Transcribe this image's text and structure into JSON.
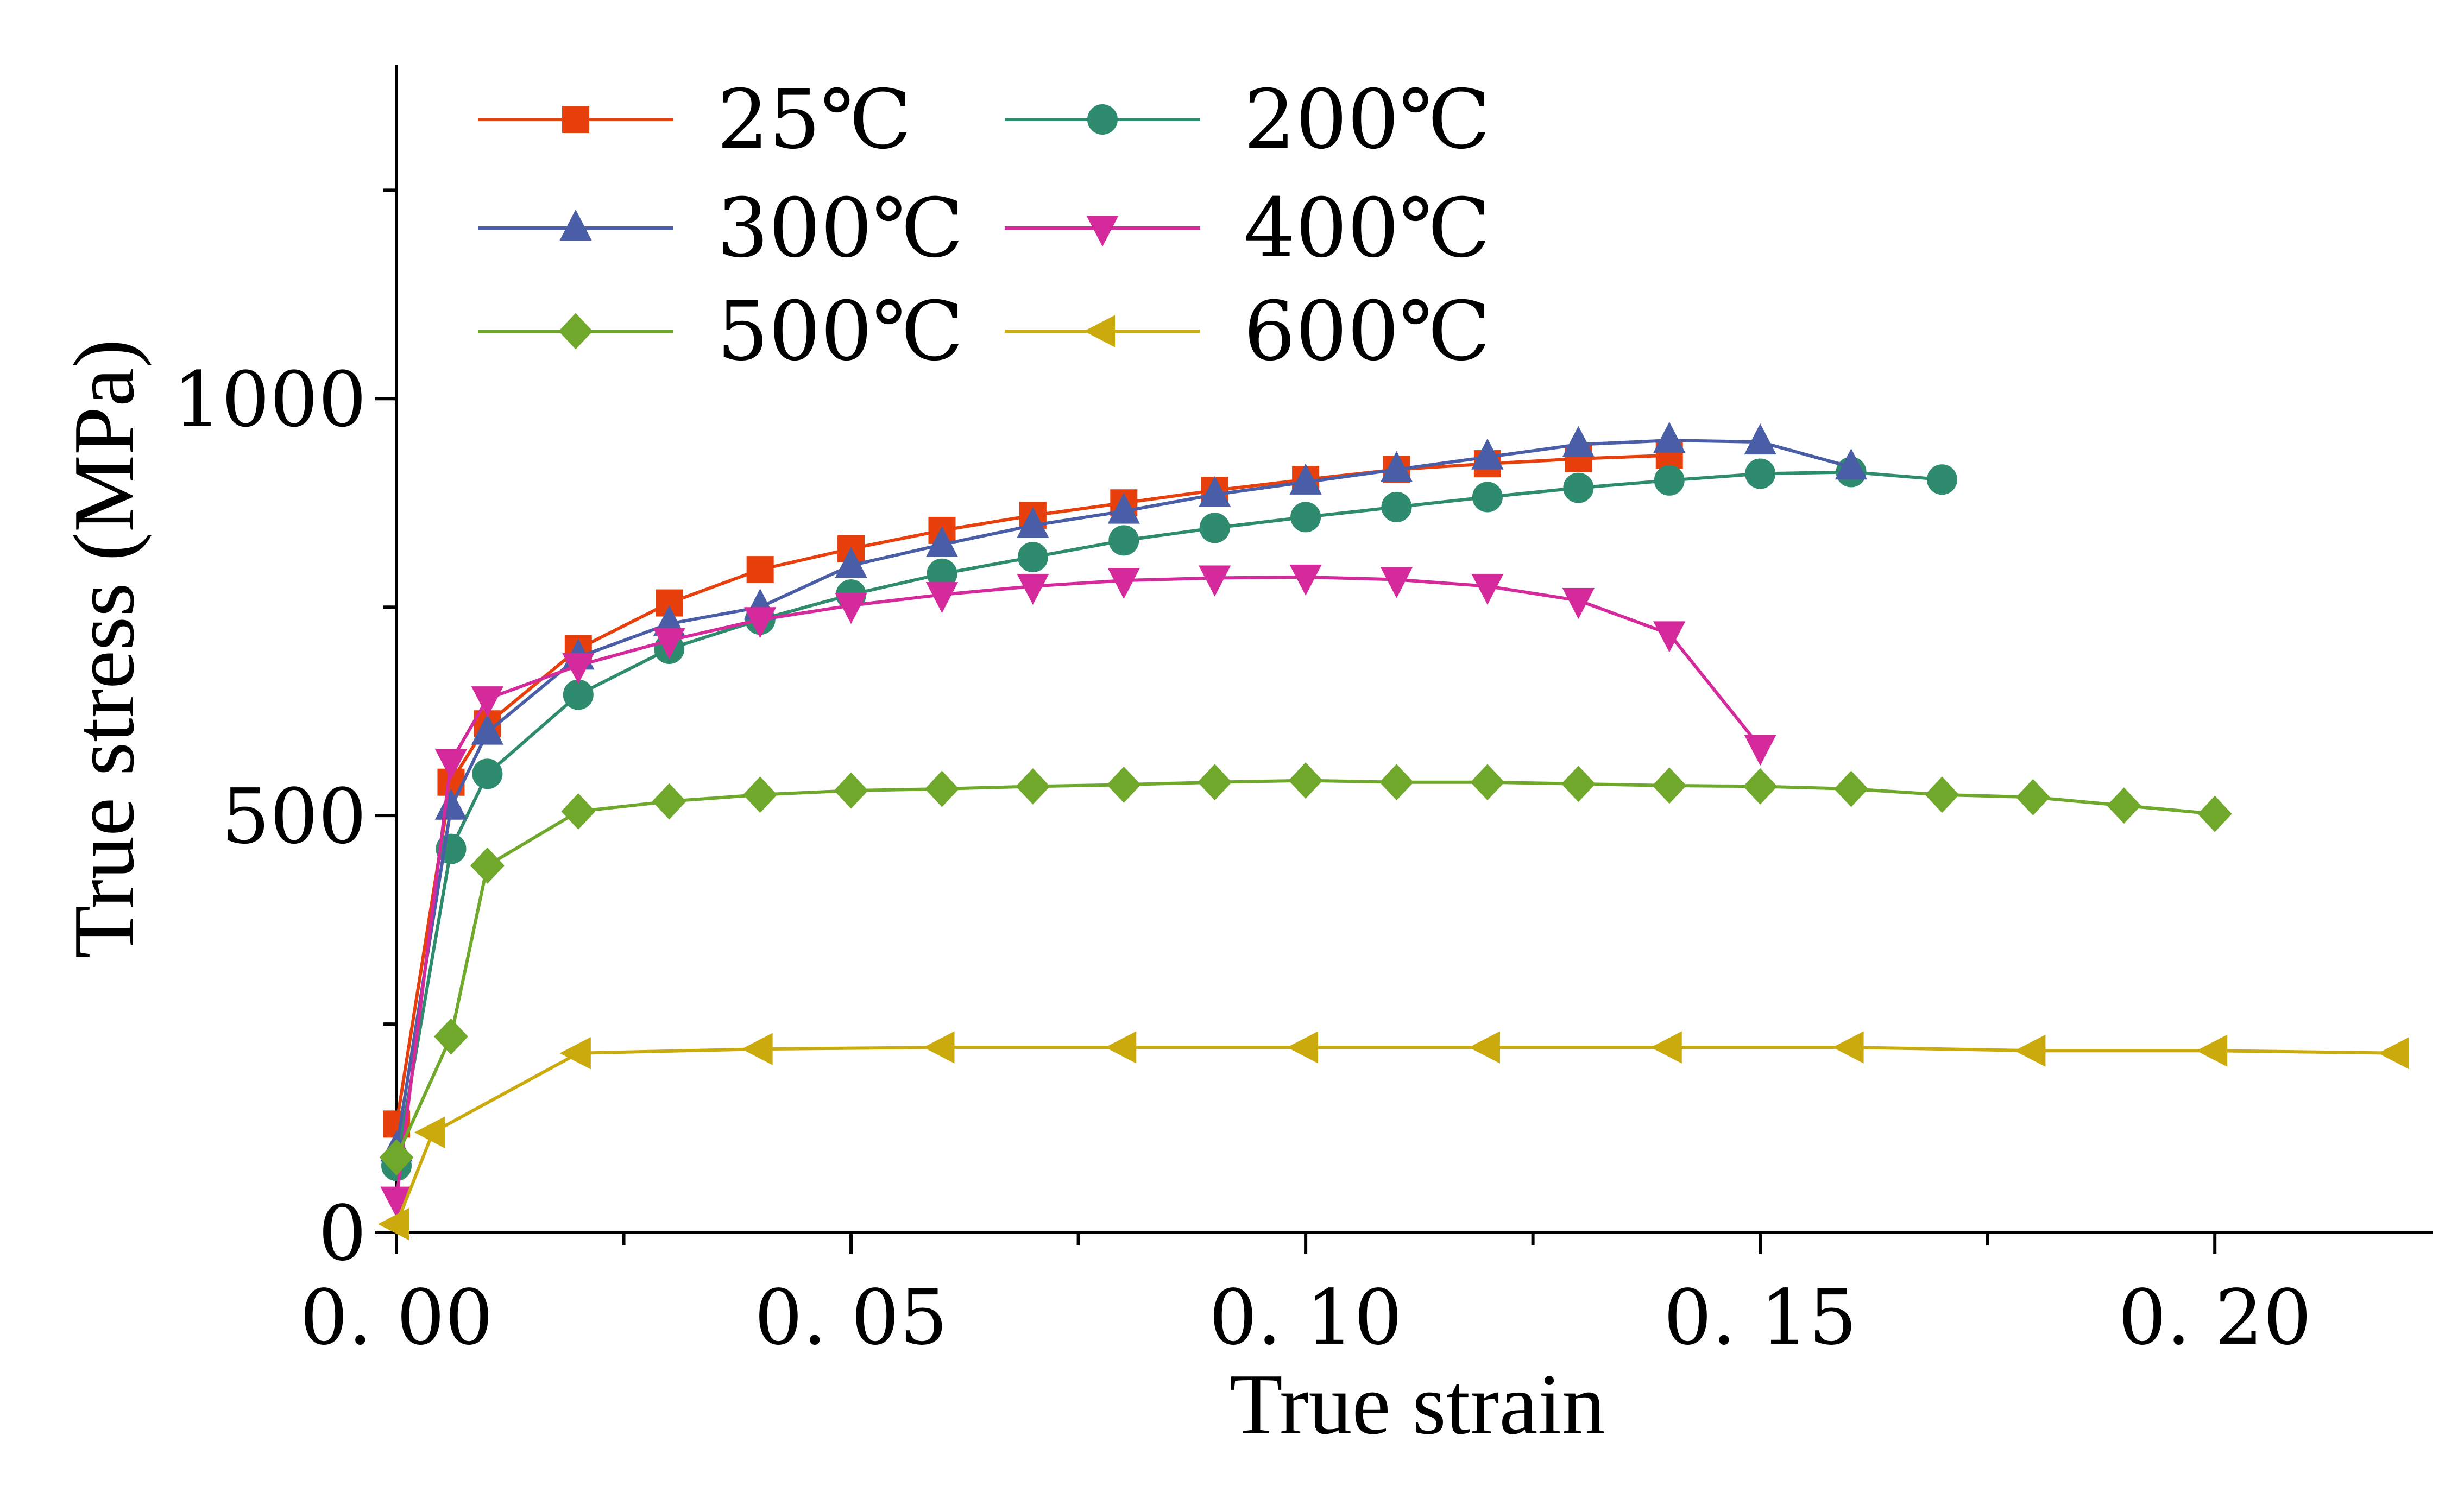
{
  "chart_data": {
    "type": "line",
    "title": "",
    "xlabel": "True strain",
    "ylabel": "True stress (MPa)",
    "xlim": [
      0,
      0.224
    ],
    "ylim": [
      0,
      1400
    ],
    "x_ticks": [
      0.0,
      0.05,
      0.1,
      0.15,
      0.2
    ],
    "x_tick_labels": [
      "0. 00",
      "0. 05",
      "0. 10",
      "0. 15",
      "0. 20"
    ],
    "x_minor_ticks": [
      0.025,
      0.075,
      0.125,
      0.175
    ],
    "y_ticks": [
      0,
      500,
      1000
    ],
    "y_tick_labels": [
      "0",
      "500",
      "1000"
    ],
    "y_minor_ticks": [
      250,
      750,
      1250
    ],
    "legend_position": "top-left",
    "series": [
      {
        "name": "25℃",
        "color": "#E8400C",
        "marker": "square",
        "x": [
          0,
          0.006,
          0.01,
          0.02,
          0.03,
          0.04,
          0.05,
          0.06,
          0.07,
          0.08,
          0.09,
          0.1,
          0.11,
          0.12,
          0.13,
          0.14
        ],
        "y": [
          130,
          540,
          610,
          700,
          755,
          795,
          820,
          842,
          860,
          875,
          890,
          903,
          915,
          922,
          928,
          932
        ]
      },
      {
        "name": "200℃",
        "color": "#2E8B6E",
        "marker": "circle",
        "x": [
          0,
          0.006,
          0.01,
          0.02,
          0.03,
          0.04,
          0.05,
          0.06,
          0.07,
          0.08,
          0.09,
          0.1,
          0.11,
          0.12,
          0.13,
          0.14,
          0.15,
          0.16,
          0.17
        ],
        "y": [
          80,
          460,
          550,
          645,
          700,
          735,
          765,
          790,
          810,
          830,
          845,
          858,
          870,
          882,
          893,
          902,
          910,
          912,
          903
        ]
      },
      {
        "name": "300℃",
        "color": "#4A5EA8",
        "marker": "triangle-up",
        "x": [
          0,
          0.006,
          0.01,
          0.02,
          0.03,
          0.04,
          0.05,
          0.06,
          0.07,
          0.08,
          0.09,
          0.1,
          0.11,
          0.12,
          0.13,
          0.14,
          0.15,
          0.16
        ],
        "y": [
          100,
          510,
          600,
          690,
          730,
          750,
          800,
          825,
          848,
          865,
          885,
          900,
          915,
          930,
          945,
          950,
          948,
          918
        ]
      },
      {
        "name": "400℃",
        "color": "#D42A9C",
        "marker": "triangle-down",
        "x": [
          0,
          0.006,
          0.01,
          0.02,
          0.03,
          0.04,
          0.05,
          0.06,
          0.07,
          0.08,
          0.09,
          0.1,
          0.11,
          0.12,
          0.13,
          0.14,
          0.15
        ],
        "y": [
          40,
          565,
          640,
          680,
          710,
          735,
          752,
          765,
          775,
          782,
          785,
          786,
          783,
          775,
          758,
          718,
          582
        ]
      },
      {
        "name": "500℃",
        "color": "#6FA82A",
        "marker": "diamond",
        "x": [
          0,
          0.006,
          0.01,
          0.02,
          0.03,
          0.04,
          0.05,
          0.06,
          0.07,
          0.08,
          0.09,
          0.1,
          0.11,
          0.12,
          0.13,
          0.14,
          0.15,
          0.16,
          0.17,
          0.18,
          0.19,
          0.2
        ],
        "y": [
          90,
          235,
          440,
          505,
          517,
          525,
          530,
          532,
          535,
          537,
          540,
          542,
          540,
          540,
          538,
          536,
          535,
          532,
          525,
          522,
          512,
          502
        ]
      },
      {
        "name": "600℃",
        "color": "#CBAA0E",
        "marker": "triangle-left",
        "x": [
          0,
          0.004,
          0.02,
          0.04,
          0.06,
          0.08,
          0.1,
          0.12,
          0.14,
          0.16,
          0.18,
          0.2,
          0.22
        ],
        "y": [
          10,
          120,
          215,
          220,
          222,
          222,
          222,
          222,
          222,
          222,
          218,
          218,
          215
        ]
      }
    ]
  }
}
